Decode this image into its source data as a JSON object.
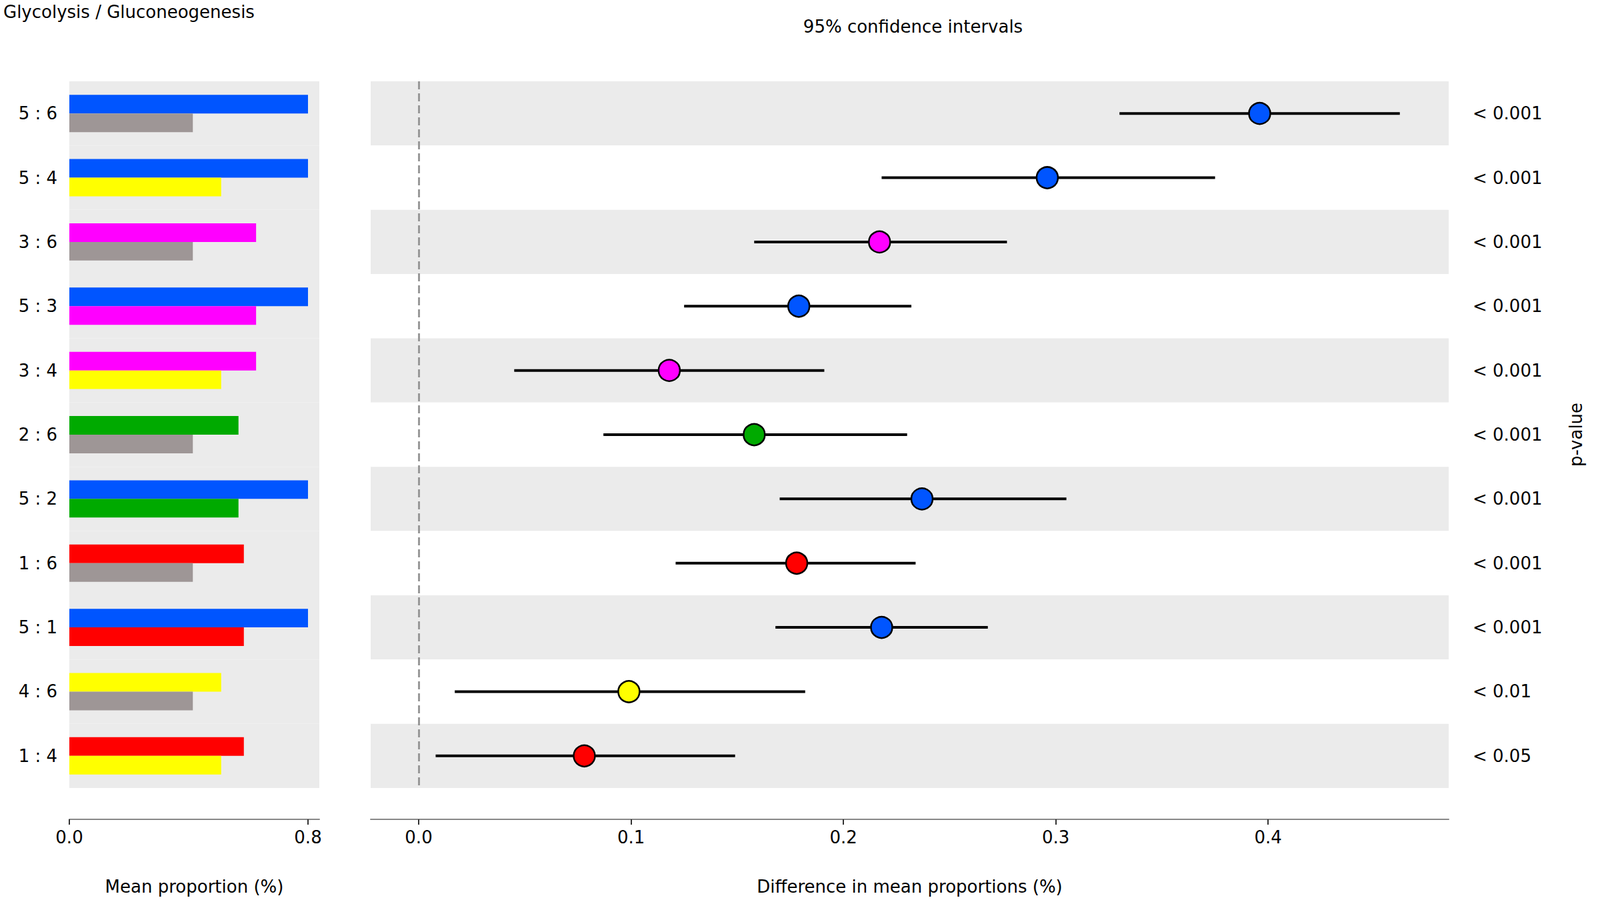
{
  "chart_data": [
    {
      "type": "bar",
      "orientation": "horizontal",
      "title": "Glycolysis / Gluconeogenesis",
      "categories": [
        "5 : 6",
        "5 : 4",
        "3 : 6",
        "5 : 3",
        "3 : 4",
        "2 : 6",
        "5 : 2",
        "1 : 6",
        "5 : 1",
        "4 : 6",
        "1 : 4"
      ],
      "series": [
        {
          "values": [
            0.8,
            0.8,
            0.626,
            0.8,
            0.626,
            0.567,
            0.8,
            0.585,
            0.8,
            0.509,
            0.585
          ],
          "colors": [
            "#0055ff",
            "#0055ff",
            "#ff00ff",
            "#0055ff",
            "#ff00ff",
            "#00aa00",
            "#0055ff",
            "#ff0000",
            "#0055ff",
            "#ffff00",
            "#ff0000"
          ]
        },
        {
          "values": [
            0.414,
            0.509,
            0.414,
            0.626,
            0.509,
            0.414,
            0.567,
            0.414,
            0.585,
            0.414,
            0.509
          ],
          "colors": [
            "#9e9696",
            "#ffff00",
            "#9e9696",
            "#ff00ff",
            "#ffff00",
            "#9e9696",
            "#00aa00",
            "#9e9696",
            "#ff0000",
            "#9e9696",
            "#ffff00"
          ]
        }
      ],
      "xlabel": "Mean proportion (%)",
      "xlim": [
        0,
        0.838
      ],
      "xticks": [
        {
          "value": 0,
          "label": "0.0"
        },
        {
          "value": 0.8,
          "label": "0.8"
        }
      ]
    },
    {
      "type": "scatter",
      "title": "95% confidence intervals",
      "categories": [
        "5 : 6",
        "5 : 4",
        "3 : 6",
        "5 : 3",
        "3 : 4",
        "2 : 6",
        "5 : 2",
        "1 : 6",
        "5 : 1",
        "4 : 6",
        "1 : 4"
      ],
      "values": [
        0.396,
        0.296,
        0.217,
        0.179,
        0.118,
        0.158,
        0.237,
        0.178,
        0.218,
        0.099,
        0.078
      ],
      "ci_low": [
        0.33,
        0.218,
        0.158,
        0.125,
        0.045,
        0.087,
        0.17,
        0.121,
        0.168,
        0.017,
        0.008
      ],
      "ci_high": [
        0.462,
        0.375,
        0.277,
        0.232,
        0.191,
        0.23,
        0.305,
        0.234,
        0.268,
        0.182,
        0.149
      ],
      "colors": [
        "#0055ff",
        "#0055ff",
        "#ff00ff",
        "#0055ff",
        "#ff00ff",
        "#00aa00",
        "#0055ff",
        "#ff0000",
        "#0055ff",
        "#ffff00",
        "#ff0000"
      ],
      "p_values": [
        "< 0.001",
        "< 0.001",
        "< 0.001",
        "< 0.001",
        "< 0.001",
        "< 0.001",
        "< 0.001",
        "< 0.001",
        "< 0.001",
        "< 0.01",
        "< 0.05"
      ],
      "p_value_label": "p-value",
      "zero_line": 0,
      "xlabel": "Difference in mean proportions (%)",
      "xlim": [
        -0.0226,
        0.485
      ],
      "xticks": [
        {
          "value": 0,
          "label": "0.0"
        },
        {
          "value": 0.1,
          "label": "0.1"
        },
        {
          "value": 0.2,
          "label": "0.2"
        },
        {
          "value": 0.3,
          "label": "0.3"
        },
        {
          "value": 0.4,
          "label": "0.4"
        }
      ]
    }
  ]
}
